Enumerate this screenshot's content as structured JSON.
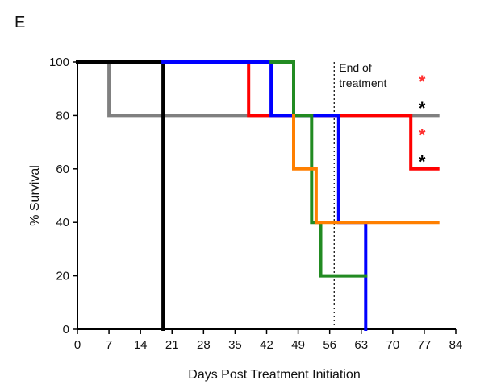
{
  "panel_label": "E",
  "chart_data": {
    "type": "line",
    "step": true,
    "title": "",
    "xlabel": "Days Post Treatment Initiation",
    "ylabel": "% Survival",
    "xlim": [
      0,
      84
    ],
    "ylim": [
      0,
      100
    ],
    "xticks": [
      0,
      7,
      14,
      21,
      28,
      35,
      42,
      49,
      56,
      63,
      70,
      77,
      84
    ],
    "yticks": [
      0,
      20,
      40,
      60,
      80,
      100
    ],
    "grid": false,
    "legend": "none",
    "end_of_treatment": {
      "x": 57,
      "label_lines": [
        "End of",
        "treatment"
      ]
    },
    "series": [
      {
        "color": "#808080",
        "points": [
          [
            0,
            100
          ],
          [
            7,
            100
          ],
          [
            7,
            80
          ],
          [
            80,
            80
          ]
        ]
      },
      {
        "color": "#000000",
        "points": [
          [
            0,
            100
          ],
          [
            19,
            100
          ],
          [
            19,
            0
          ]
        ]
      },
      {
        "color": "#ff0000",
        "points": [
          [
            38,
            100
          ],
          [
            38,
            80
          ],
          [
            74,
            80
          ],
          [
            74,
            60
          ],
          [
            80,
            60
          ]
        ]
      },
      {
        "color": "#0000ff",
        "points": [
          [
            19,
            100
          ],
          [
            43,
            100
          ],
          [
            43,
            80
          ],
          [
            58,
            80
          ],
          [
            58,
            40
          ],
          [
            64,
            40
          ],
          [
            64,
            0
          ]
        ]
      },
      {
        "color": "#228b22",
        "points": [
          [
            43,
            100
          ],
          [
            48,
            100
          ],
          [
            48,
            80
          ],
          [
            52,
            80
          ],
          [
            52,
            40
          ],
          [
            54,
            40
          ],
          [
            54,
            20
          ],
          [
            64,
            20
          ]
        ]
      },
      {
        "color": "#ff7f00",
        "points": [
          [
            48,
            80
          ],
          [
            48,
            60
          ],
          [
            53,
            60
          ],
          [
            53,
            40
          ],
          [
            80,
            40
          ]
        ]
      }
    ],
    "markers": [
      {
        "text": "*",
        "x": 76.5,
        "y": 94,
        "color": "#ff3030"
      },
      {
        "text": "*",
        "x": 76.5,
        "y": 84,
        "color": "#000000"
      },
      {
        "text": "*",
        "x": 76.5,
        "y": 74,
        "color": "#ff3030"
      },
      {
        "text": "*",
        "x": 76.5,
        "y": 64,
        "color": "#000000"
      }
    ]
  }
}
